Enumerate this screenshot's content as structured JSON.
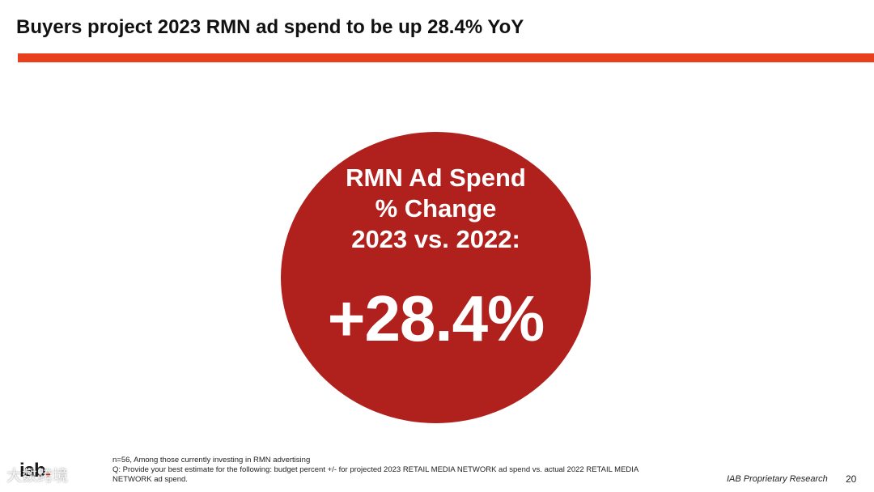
{
  "slide": {
    "title": "Buyers project 2023 RMN ad spend to be up 28.4% YoY",
    "accent_color": "#e8401c"
  },
  "callout": {
    "color": "#b0201c",
    "heading_lines": [
      "RMN Ad Spend",
      "% Change",
      "2023 vs. 2022:"
    ],
    "value": "+28.4%"
  },
  "footer": {
    "logo_text": "iab",
    "watermark_text": "大数跨境",
    "footnote_lines": [
      "n=56, Among those currently investing in RMN advertising",
      "Q: Provide your best estimate for the following:  budget percent +/- for projected 2023 RETAIL MEDIA NETWORK ad spend vs. actual 2022 RETAIL MEDIA",
      "NETWORK ad spend."
    ],
    "source_label": "IAB Proprietary Research",
    "page_number": "20"
  }
}
